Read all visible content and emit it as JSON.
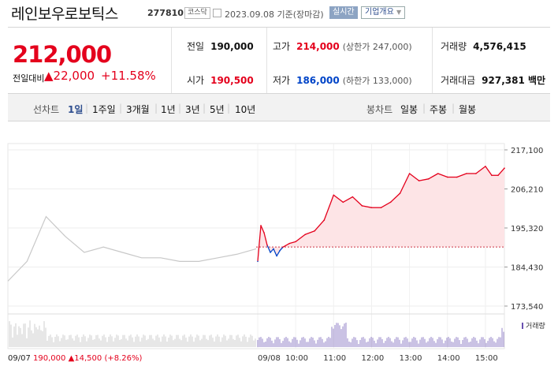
{
  "header": {
    "name": "레인보우로보틱스",
    "code": "277810",
    "market": "코스닥",
    "date": "2023.09.08 기준(장마감)",
    "realtime_label": "실시간",
    "company_label": "기업개요"
  },
  "quote": {
    "price": "212,000",
    "change_label": "전일대비",
    "change_value": "22,000",
    "change_pct": "+11.58%",
    "prev_label": "전일",
    "prev": "190,000",
    "high_label": "고가",
    "high": "214,000",
    "upper_limit": "(상한가 247,000)",
    "volume_label": "거래량",
    "volume": "4,576,415",
    "open_label": "시가",
    "open": "190,500",
    "low_label": "저가",
    "low": "186,000",
    "lower_limit": "(하한가 133,000)",
    "amount_label": "거래대금",
    "amount": "927,381 백만"
  },
  "tabs": {
    "line_label": "선차트",
    "line": [
      "1일",
      "1주일",
      "3개월",
      "1년",
      "3년",
      "5년",
      "10년"
    ],
    "candle_label": "봉차트",
    "candle": [
      "일봉",
      "주봉",
      "월봉"
    ]
  },
  "colors": {
    "up": "#e4001c",
    "down": "#0044c8",
    "prev_day": "#c8c8c8",
    "volume": "#6a51b0",
    "fill": "#fde4e6"
  },
  "footer": {
    "date": "09/07",
    "price": "190,000",
    "change": "14,500",
    "pct": "(+8.26%)"
  },
  "volume_label": "거래량",
  "chart_data": {
    "type": "line",
    "title": "",
    "xlabel": "",
    "ylabel": "",
    "ylim": [
      173540,
      217100
    ],
    "yticks": [
      217100,
      206210,
      195320,
      184430,
      173540
    ],
    "xticks": [
      "09/08",
      "10:00",
      "11:00",
      "12:00",
      "13:00",
      "14:00",
      "15:00"
    ],
    "baseline": 190000,
    "series": [
      {
        "x": [
          "09/07 09:00",
          "09/07 09:30",
          "09/07 10:00",
          "09/07 10:30",
          "09/07 11:00",
          "09/07 11:30",
          "09/07 12:00",
          "09/07 12:30",
          "09/07 13:00",
          "09/07 13:30",
          "09/07 14:00",
          "09/07 14:30",
          "09/07 15:00",
          "09/07 15:30"
        ],
        "values": [
          180500,
          186000,
          198500,
          193000,
          188500,
          190000,
          188500,
          187000,
          187000,
          186000,
          186000,
          187000,
          188000,
          189500
        ]
      },
      {
        "x": [
          "09:00",
          "09:05",
          "09:10",
          "09:15",
          "09:20",
          "09:25",
          "09:30",
          "09:35",
          "09:40",
          "09:50",
          "10:00",
          "10:15",
          "10:30",
          "10:45",
          "11:00",
          "11:15",
          "11:30",
          "11:45",
          "12:00",
          "12:15",
          "12:30",
          "12:45",
          "13:00",
          "13:15",
          "13:30",
          "13:45",
          "14:00",
          "14:15",
          "14:30",
          "14:45",
          "15:00",
          "15:10",
          "15:20",
          "15:30"
        ],
        "values": [
          186000,
          196000,
          194000,
          190500,
          188500,
          189500,
          187500,
          189000,
          190000,
          191000,
          191500,
          193500,
          194500,
          197500,
          204500,
          202500,
          204000,
          201500,
          201000,
          201000,
          202500,
          205000,
          210500,
          208500,
          209000,
          210500,
          209500,
          209500,
          210500,
          210500,
          212500,
          210000,
          210000,
          212000
        ]
      }
    ],
    "volume": {
      "x": [
        "09/07",
        "09/08"
      ],
      "note": "relative volume bars, prior day then current day"
    }
  }
}
